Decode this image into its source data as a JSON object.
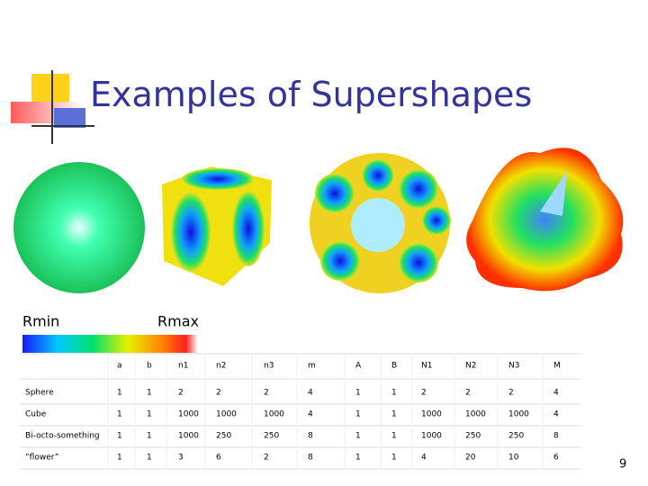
{
  "header": {
    "title": "Examples of Supershapes"
  },
  "colorbar": {
    "min_label": "Rmin",
    "max_label": "Rmax"
  },
  "table": {
    "header": [
      "a",
      "b",
      "n1",
      "n2",
      "n3",
      "m",
      "A",
      "B",
      "N1",
      "N2",
      "N3",
      "M"
    ],
    "rows": [
      [
        "Sphere",
        1,
        1,
        2,
        2,
        2,
        4,
        1,
        1,
        2,
        2,
        2,
        4
      ],
      [
        "Cube",
        1,
        1,
        1000,
        1000,
        1000,
        4,
        1,
        1,
        1000,
        1000,
        1000,
        4
      ],
      [
        "Bi-octo-something",
        1,
        1,
        1000,
        250,
        250,
        8,
        1,
        1,
        1000,
        250,
        250,
        8
      ],
      [
        "“flower”",
        1,
        1,
        3,
        6,
        2,
        8,
        1,
        1,
        4,
        20,
        10,
        6
      ]
    ]
  },
  "footer": {
    "page_number": "9"
  }
}
